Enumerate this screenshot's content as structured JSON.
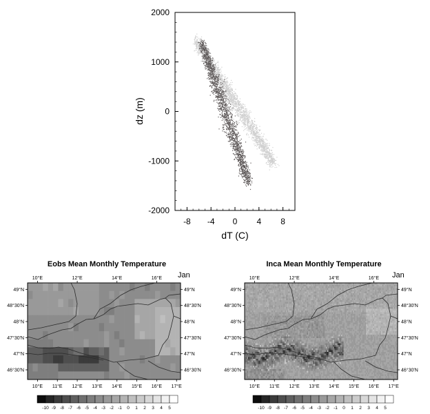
{
  "chart_data": [
    {
      "type": "scatter",
      "title": "",
      "xlabel": "dT (C)",
      "ylabel": "dz (m)",
      "xlim": [
        -10,
        10
      ],
      "ylim": [
        -2000,
        2000
      ],
      "x_ticks": [
        -8,
        -4,
        0,
        4,
        8
      ],
      "y_ticks": [
        -2000,
        -1000,
        0,
        1000,
        2000
      ],
      "grid": false,
      "series": [
        {
          "color": "#cfcfcf",
          "trend": {
            "x_at_top": -6.6,
            "y_top": 1450,
            "x_at_bottom": 6.4,
            "y_bottom": -1050
          },
          "points": [
            [
              -6.5,
              1400
            ],
            [
              -5.8,
              1250
            ],
            [
              -5.0,
              1100
            ],
            [
              -4.0,
              900
            ],
            [
              -3.0,
              700
            ],
            [
              -2.0,
              480
            ],
            [
              -1.0,
              300
            ],
            [
              0.0,
              120
            ],
            [
              1.0,
              -60
            ],
            [
              2.0,
              -250
            ],
            [
              3.0,
              -430
            ],
            [
              4.0,
              -620
            ],
            [
              5.0,
              -800
            ],
            [
              6.0,
              -980
            ]
          ]
        },
        {
          "color": "#5e5959",
          "trend": {
            "x_at_top": -5.6,
            "y_top": 1400,
            "x_at_bottom": 2.3,
            "y_bottom": -1450
          },
          "points": [
            [
              -5.5,
              1350
            ],
            [
              -5.0,
              1150
            ],
            [
              -4.5,
              950
            ],
            [
              -4.0,
              750
            ],
            [
              -3.5,
              580
            ],
            [
              -3.0,
              400
            ],
            [
              -2.5,
              220
            ],
            [
              -2.0,
              40
            ],
            [
              -1.5,
              -150
            ],
            [
              -1.0,
              -340
            ],
            [
              -0.5,
              -520
            ],
            [
              0.0,
              -700
            ],
            [
              0.5,
              -880
            ],
            [
              1.0,
              -1060
            ],
            [
              1.5,
              -1230
            ],
            [
              2.0,
              -1400
            ]
          ]
        }
      ]
    },
    {
      "type": "heatmap",
      "title": "Eobs Mean Monthly Temperature",
      "month_label": "Jan",
      "x_tick_labels_top": [
        "10°E",
        "12°E",
        "14°E",
        "16°E"
      ],
      "x_tick_labels_bottom": [
        "10°E",
        "11°E",
        "12°E",
        "13°E",
        "14°E",
        "15°E",
        "16°E",
        "17°E"
      ],
      "y_tick_labels_left": [
        "49°N",
        "48°30'N",
        "48°N",
        "47°30'N",
        "47°N",
        "46°30'N"
      ],
      "y_tick_labels_right": [
        "49°N",
        "48°30'N",
        "48°N",
        "47°30'N",
        "47°N",
        "46°30'N"
      ],
      "lon_range": [
        9.5,
        17.2
      ],
      "lat_range": [
        46.2,
        49.2
      ],
      "grid_columns": 30,
      "grid_rows": 12,
      "regions": [
        {
          "lon": [
            9.5,
            17.2
          ],
          "lat": [
            46.2,
            49.2
          ],
          "value": -3
        },
        {
          "lon": [
            9.5,
            13.2
          ],
          "lat": [
            48.2,
            49.2
          ],
          "value": -2
        },
        {
          "lon": [
            14.8,
            16.9
          ],
          "lat": [
            47.4,
            48.7
          ],
          "value": -1
        },
        {
          "lon": [
            15.8,
            17.2
          ],
          "lat": [
            47.0,
            48.4
          ],
          "value": 0
        },
        {
          "lon": [
            9.5,
            10.8
          ],
          "lat": [
            46.9,
            47.4
          ],
          "value": -4
        },
        {
          "lon": [
            9.5,
            13.6
          ],
          "lat": [
            46.5,
            47.2
          ],
          "value": -6
        },
        {
          "lon": [
            10.3,
            12.7
          ],
          "lat": [
            46.6,
            47.1
          ],
          "value": -7
        },
        {
          "lon": [
            10.9,
            11.3
          ],
          "lat": [
            46.7,
            47.0
          ],
          "value": -8
        },
        {
          "lon": [
            12.3,
            13.0
          ],
          "lat": [
            46.6,
            46.9
          ],
          "value": -8
        },
        {
          "lon": [
            11.8,
            12.3
          ],
          "lat": [
            46.9,
            47.2
          ],
          "value": -5
        },
        {
          "lon": [
            9.5,
            11.0
          ],
          "lat": [
            46.2,
            46.6
          ],
          "value": -4
        }
      ]
    },
    {
      "type": "heatmap",
      "title": "Inca Mean Monthly Temperature",
      "month_label": "Jan",
      "x_tick_labels_top": [
        "10°E",
        "12°E",
        "14°E",
        "16°E"
      ],
      "x_tick_labels_bottom": [
        "10°E",
        "11°E",
        "12°E",
        "13°E",
        "14°E",
        "15°E",
        "16°E",
        "17°E"
      ],
      "y_tick_labels_left": [
        "49°N",
        "48°30'N",
        "48°N",
        "47°30'N",
        "47°N",
        "46°30'N"
      ],
      "y_tick_labels_right": [
        "49°N",
        "48°30'N",
        "48°N",
        "47°30'N",
        "47°N",
        "46°30'N"
      ],
      "lon_range": [
        9.5,
        17.2
      ],
      "lat_range": [
        46.2,
        49.2
      ],
      "grid_columns": 130,
      "grid_rows": 56,
      "base_value": -2,
      "mountain_band": {
        "lon_from": 9.5,
        "lon_to": 14.5,
        "lat_center": 47.0,
        "lat_width": 0.45,
        "min_value": -10
      }
    }
  ],
  "colorbar": {
    "labels": [
      "-10",
      "-9",
      "-8",
      "-7",
      "-6",
      "-5",
      "-4",
      "-3",
      "-2",
      "-1",
      "0",
      "1",
      "2",
      "3",
      "4",
      "5"
    ],
    "levels": [
      -10,
      -9,
      -8,
      -7,
      -6,
      -5,
      -4,
      -3,
      -2,
      -1,
      0,
      1,
      2,
      3,
      4,
      5
    ],
    "colors": [
      "#0d0d0d",
      "#262626",
      "#3b3b3b",
      "#4e4e4e",
      "#5f5f5f",
      "#6f6f6f",
      "#7e7e7e",
      "#8c8c8c",
      "#999999",
      "#a6a6a6",
      "#b3b3b3",
      "#bfbfbf",
      "#cbcbcb",
      "#d7d7d7",
      "#e4e4e4",
      "#f2f2f2",
      "#ffffff"
    ]
  }
}
